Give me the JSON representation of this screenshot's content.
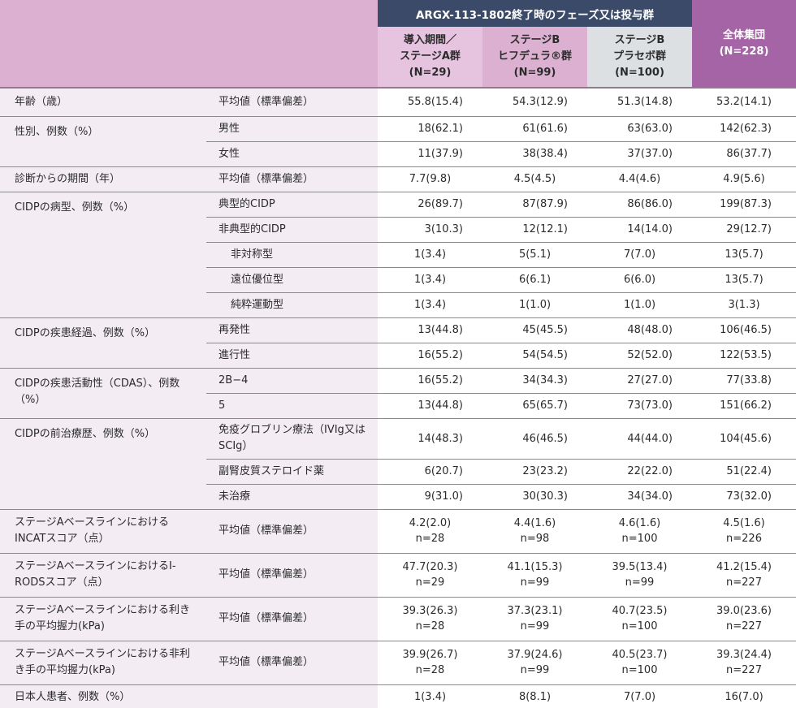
{
  "header": {
    "group_title": "ARGX-113-1802終了時のフェーズ又は投与群",
    "columns": [
      {
        "line1": "導入期間／",
        "line2": "ステージA群",
        "line3": "(N=29)"
      },
      {
        "line1": "ステージB",
        "line2": "ヒフデュラ®群",
        "line3": "(N=99)"
      },
      {
        "line1": "ステージB",
        "line2": "プラセボ群",
        "line3": "(N=100)"
      },
      {
        "line1": "全体集団",
        "line2": "(N=228)"
      }
    ]
  },
  "colors": {
    "group_header": "#3b4a68",
    "stage_a": "#e6c3df",
    "stage_b_drug": "#dbb0d0",
    "stage_b_placebo": "#dde0e3",
    "overall": "#a564a5",
    "label_bg": "#f3ecf3"
  },
  "rows": {
    "age": {
      "label": "年齢（歳）",
      "sub": "平均値（標準偏差）",
      "v": [
        "55.8(15.4)",
        "54.3(12.9)",
        "51.3(14.8)",
        "53.2(14.1)"
      ]
    },
    "sex": {
      "label": "性別、例数（%）",
      "male": {
        "sub": "男性",
        "v": [
          "18(62.1)",
          "61(61.6)",
          "63(63.0)",
          "142(62.3)"
        ]
      },
      "female": {
        "sub": "女性",
        "v": [
          "11(37.9)",
          "38(38.4)",
          "37(37.0)",
          "86(37.7)"
        ]
      }
    },
    "duration": {
      "label": "診断からの期間（年）",
      "sub": "平均値（標準偏差）",
      "v": [
        "7.7(9.8)",
        "4.5(4.5)",
        "4.4(4.6)",
        "4.9(5.6)"
      ]
    },
    "type": {
      "label": "CIDPの病型、例数（%）",
      "typical": {
        "sub": "典型的CIDP",
        "v": [
          "26(89.7)",
          "87(87.9)",
          "86(86.0)",
          "199(87.3)"
        ]
      },
      "atypical": {
        "sub": "非典型的CIDP",
        "v": [
          "3(10.3)",
          "12(12.1)",
          "14(14.0)",
          "29(12.7)"
        ]
      },
      "asym": {
        "sub": "非対称型",
        "v": [
          "1(3.4)",
          "5(5.1)",
          "7(7.0)",
          "13(5.7)"
        ]
      },
      "distal": {
        "sub": "遠位優位型",
        "v": [
          "1(3.4)",
          "6(6.1)",
          "6(6.0)",
          "13(5.7)"
        ]
      },
      "motor": {
        "sub": "純粋運動型",
        "v": [
          "1(3.4)",
          "1(1.0)",
          "1(1.0)",
          "3(1.3)"
        ]
      }
    },
    "course": {
      "label": "CIDPの疾患経過、例数（%）",
      "relapse": {
        "sub": "再発性",
        "v": [
          "13(44.8)",
          "45(45.5)",
          "48(48.0)",
          "106(46.5)"
        ]
      },
      "progressive": {
        "sub": "進行性",
        "v": [
          "16(55.2)",
          "54(54.5)",
          "52(52.0)",
          "122(53.5)"
        ]
      }
    },
    "cdas": {
      "label": "CIDPの疾患活動性（CDAS）、例数（%）",
      "r1": {
        "sub": "2B−4",
        "v": [
          "16(55.2)",
          "34(34.3)",
          "27(27.0)",
          "77(33.8)"
        ]
      },
      "r2": {
        "sub": "5",
        "v": [
          "13(44.8)",
          "65(65.7)",
          "73(73.0)",
          "151(66.2)"
        ]
      }
    },
    "prior": {
      "label": "CIDPの前治療歴、例数（%）",
      "ig": {
        "sub": "免疫グロブリン療法（IVIg又はSCIg）",
        "v": [
          "14(48.3)",
          "46(46.5)",
          "44(44.0)",
          "104(45.6)"
        ]
      },
      "steroid": {
        "sub": "副腎皮質ステロイド薬",
        "v": [
          "6(20.7)",
          "23(23.2)",
          "22(22.0)",
          "51(22.4)"
        ]
      },
      "none": {
        "sub": "未治療",
        "v": [
          "9(31.0)",
          "30(30.3)",
          "34(34.0)",
          "73(32.0)"
        ]
      }
    },
    "incat": {
      "label": "ステージAベースラインにおけるINCATスコア（点）",
      "sub": "平均値（標準偏差）",
      "v": [
        "4.2(2.0)",
        "4.4(1.6)",
        "4.6(1.6)",
        "4.5(1.6)"
      ],
      "n": [
        "n=28",
        "n=98",
        "n=100",
        "n=226"
      ]
    },
    "irods": {
      "label": "ステージAベースラインにおけるI-RODSスコア（点）",
      "sub": "平均値（標準偏差）",
      "v": [
        "47.7(20.3)",
        "41.1(15.3)",
        "39.5(13.4)",
        "41.2(15.4)"
      ],
      "n": [
        "n=29",
        "n=99",
        "n=99",
        "n=227"
      ]
    },
    "grip_dom": {
      "label": "ステージAベースラインにおける利き手の平均握力(kPa)",
      "sub": "平均値（標準偏差）",
      "v": [
        "39.3(26.3)",
        "37.3(23.1)",
        "40.7(23.5)",
        "39.0(23.6)"
      ],
      "n": [
        "n=28",
        "n=99",
        "n=100",
        "n=227"
      ]
    },
    "grip_nondom": {
      "label": "ステージAベースラインにおける非利き手の平均握力(kPa)",
      "sub": "平均値（標準偏差）",
      "v": [
        "39.9(26.7)",
        "37.9(24.6)",
        "40.5(23.7)",
        "39.3(24.4)"
      ],
      "n": [
        "n=28",
        "n=99",
        "n=100",
        "n=227"
      ]
    },
    "japanese": {
      "label": "日本人患者、例数（%）",
      "v": [
        "1(3.4)",
        "8(8.1)",
        "7(7.0)",
        "16(7.0)"
      ]
    }
  }
}
